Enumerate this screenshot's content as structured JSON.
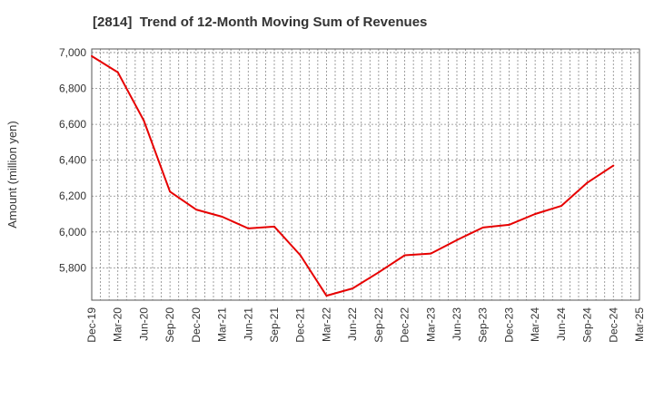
{
  "chart_data": {
    "type": "line",
    "title": "[2814]  Trend of 12-Month Moving Sum of Revenues",
    "xlabel": "",
    "ylabel": "Amount (million yen)",
    "ylim": [
      5620,
      7020
    ],
    "yticks": [
      5800,
      6000,
      6200,
      6400,
      6600,
      6800,
      7000
    ],
    "ytick_labels": [
      "5,800",
      "6,000",
      "6,200",
      "6,400",
      "6,600",
      "6,800",
      "7,000"
    ],
    "xticks": [
      "Dec-19",
      "Mar-20",
      "Jun-20",
      "Sep-20",
      "Dec-20",
      "Mar-21",
      "Jun-21",
      "Sep-21",
      "Dec-21",
      "Mar-22",
      "Jun-22",
      "Sep-22",
      "Dec-22",
      "Mar-23",
      "Jun-23",
      "Sep-23",
      "Dec-23",
      "Mar-24",
      "Jun-24",
      "Sep-24",
      "Dec-24",
      "Mar-25"
    ],
    "grid": true,
    "series": [
      {
        "color": "#e60000",
        "x": [
          "Dec-19",
          "Mar-20",
          "Jun-20",
          "Sep-20",
          "Dec-20",
          "Mar-21",
          "Jun-21",
          "Sep-21",
          "Dec-21",
          "Mar-22",
          "Jun-22",
          "Sep-22",
          "Dec-22",
          "Mar-23",
          "Jun-23",
          "Sep-23",
          "Dec-23",
          "Mar-24",
          "Jun-24",
          "Sep-24",
          "Dec-24"
        ],
        "values": [
          6980,
          6890,
          6620,
          6225,
          6125,
          6085,
          6020,
          6030,
          5870,
          5645,
          5685,
          5775,
          5870,
          5880,
          5955,
          6025,
          6040,
          6100,
          6145,
          6275,
          6370
        ]
      }
    ]
  }
}
